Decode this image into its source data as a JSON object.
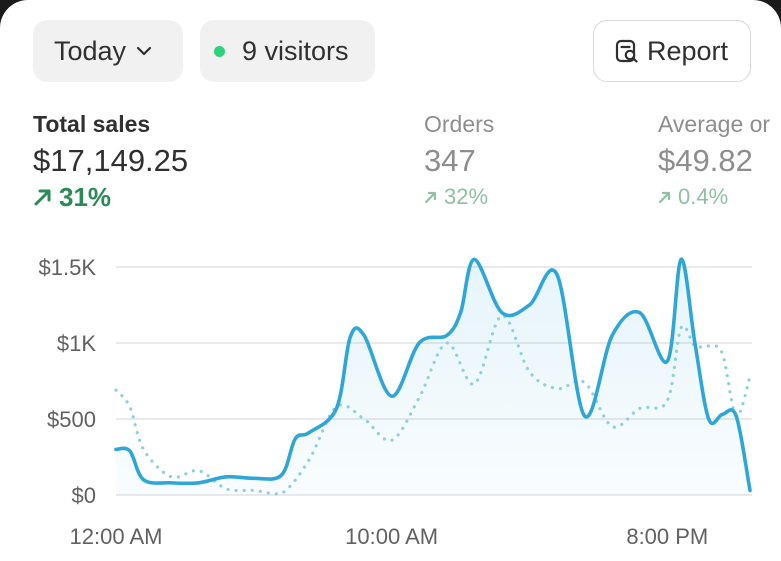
{
  "toolbar": {
    "date_range": "Today",
    "visitors": "9 visitors",
    "report": "Report"
  },
  "metrics": {
    "total_sales": {
      "label": "Total sales",
      "value": "$17,149.25",
      "change": "31%"
    },
    "orders": {
      "label": "Orders",
      "value": "347",
      "change": "32%"
    },
    "average_order": {
      "label": "Average or",
      "value": "$49.82",
      "change": "0.4%"
    }
  },
  "colors": {
    "accent_line": "#2ea7d8",
    "previous_line": "#8fd0df",
    "positive": "#2b8a55",
    "live_dot": "#2fd17f"
  },
  "chart_data": {
    "type": "line",
    "ylim": [
      0,
      1500
    ],
    "xlim": [
      0,
      23
    ],
    "yticks": [
      0,
      500,
      1000,
      1500
    ],
    "ytick_labels": [
      "$0",
      "$500",
      "$1K",
      "$1.5K"
    ],
    "xtick_positions": [
      0,
      10,
      20
    ],
    "xtick_labels": [
      "12:00 AM",
      "10:00 AM",
      "8:00 PM"
    ],
    "grid": true,
    "series": [
      {
        "style": "solid",
        "x": [
          0,
          0.5,
          1,
          2,
          3,
          4,
          5,
          6,
          6.5,
          7,
          8,
          8.5,
          9,
          10,
          11,
          12,
          12.5,
          13,
          14,
          15,
          16,
          17,
          18,
          19,
          20,
          20.5,
          21,
          21.5,
          22,
          22.5,
          23
        ],
        "values": [
          300,
          290,
          100,
          80,
          80,
          120,
          110,
          130,
          370,
          410,
          570,
          1040,
          1050,
          650,
          1000,
          1050,
          1200,
          1550,
          1200,
          1250,
          1450,
          520,
          1050,
          1200,
          880,
          1550,
          1000,
          500,
          530,
          520,
          30
        ]
      },
      {
        "style": "dotted",
        "x": [
          0,
          0.5,
          1,
          2,
          3,
          4,
          5,
          6,
          7,
          8,
          9,
          10,
          11,
          12,
          13,
          14,
          15,
          16,
          17,
          18,
          19,
          20,
          20.5,
          21,
          21.5,
          22,
          22.5,
          23
        ],
        "values": [
          690,
          580,
          300,
          120,
          160,
          40,
          30,
          10,
          230,
          580,
          500,
          360,
          640,
          1000,
          730,
          1180,
          810,
          700,
          740,
          450,
          570,
          620,
          1100,
          980,
          980,
          930,
          520,
          780
        ]
      }
    ]
  }
}
